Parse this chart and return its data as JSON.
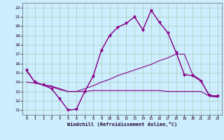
{
  "xlabel": "Windchill (Refroidissement éolien,°C)",
  "background_color": "#cceeff",
  "grid_color": "#aaccbb",
  "line_color": "#880088",
  "x_ticks": [
    0,
    1,
    2,
    3,
    4,
    5,
    6,
    7,
    8,
    9,
    10,
    11,
    12,
    13,
    14,
    15,
    16,
    17,
    18,
    19,
    20,
    21,
    22,
    23
  ],
  "y_ticks": [
    11,
    12,
    13,
    14,
    15,
    16,
    17,
    18,
    19,
    20,
    21,
    22
  ],
  "xlim": [
    -0.5,
    23.5
  ],
  "ylim": [
    10.5,
    22.5
  ],
  "line1_y": [
    15.3,
    14.0,
    13.7,
    13.3,
    12.2,
    11.0,
    11.1,
    13.0,
    14.6,
    17.4,
    19.0,
    19.9,
    20.3,
    21.0,
    19.6,
    21.7,
    20.4,
    19.3,
    17.2,
    14.8,
    14.7,
    14.1,
    12.6,
    12.5
  ],
  "line2_y": [
    15.3,
    14.0,
    13.7,
    13.3,
    12.2,
    11.0,
    11.1,
    13.0,
    14.6,
    17.4,
    19.0,
    19.9,
    20.3,
    21.0,
    19.6,
    21.7,
    20.4,
    19.3,
    17.2,
    14.8,
    14.7,
    14.1,
    12.6,
    12.5
  ],
  "line3_y": [
    15.2,
    14.0,
    13.7,
    13.6,
    13.3,
    13.0,
    13.0,
    13.3,
    13.6,
    14.0,
    14.3,
    14.7,
    15.0,
    15.3,
    15.6,
    15.9,
    16.3,
    16.6,
    17.0,
    17.0,
    14.8,
    14.2,
    12.5,
    12.4
  ],
  "line4_y": [
    14.0,
    13.9,
    13.7,
    13.5,
    13.2,
    13.0,
    13.0,
    13.0,
    13.1,
    13.1,
    13.1,
    13.1,
    13.1,
    13.1,
    13.1,
    13.1,
    13.1,
    13.0,
    13.0,
    13.0,
    13.0,
    13.0,
    12.5,
    12.4
  ]
}
